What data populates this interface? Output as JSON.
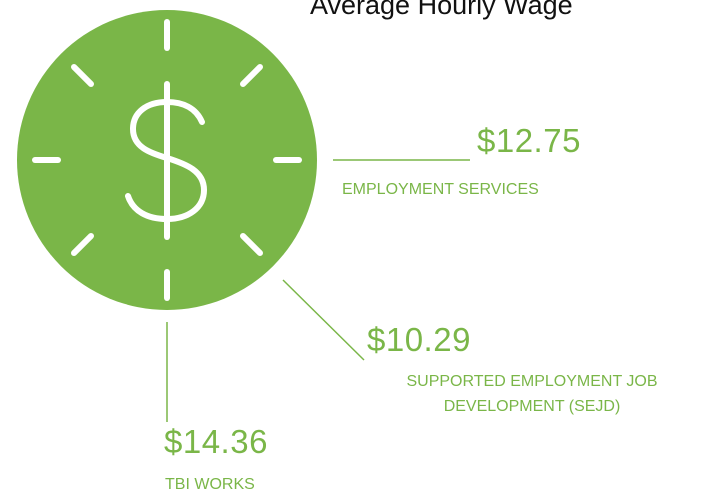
{
  "title": "Average Hourly Wage",
  "items": [
    {
      "value": "$12.75",
      "label_lines": [
        "EMPLOYMENT SERVICES"
      ]
    },
    {
      "value": "$10.29",
      "label_lines": [
        "SUPPORTED EMPLOYMENT JOB",
        "DEVELOPMENT (SEJD)"
      ]
    },
    {
      "value": "$14.36",
      "label_lines": [
        "TBI WORKS"
      ]
    }
  ]
}
